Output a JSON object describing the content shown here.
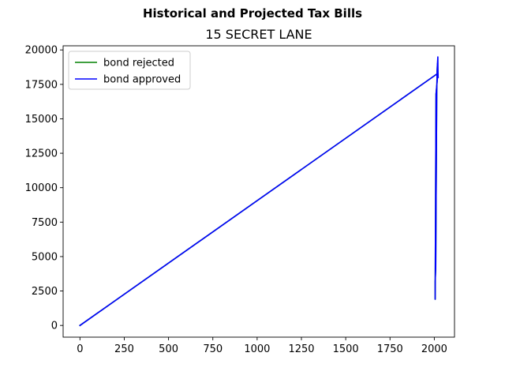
{
  "chart_data": {
    "type": "line",
    "suptitle": "Historical and Projected Tax Bills",
    "title": "15 SECRET LANE",
    "xlabel": "",
    "ylabel": "",
    "xlim": [
      -95,
      2114
    ],
    "ylim": [
      -850,
      20300
    ],
    "xticks": [
      0,
      250,
      500,
      750,
      1000,
      1250,
      1500,
      1750,
      2000
    ],
    "yticks": [
      0,
      2500,
      5000,
      7500,
      10000,
      12500,
      15000,
      17500,
      20000
    ],
    "grid": false,
    "legend": "top-left",
    "series": [
      {
        "name": "bond rejected",
        "color": "#008000",
        "x": [
          0,
          2020,
          2010,
          2005,
          2005,
          2008,
          2010,
          2012,
          2014,
          2016,
          2018,
          2020,
          2021
        ],
        "y": [
          0,
          18300,
          16800,
          1900,
          3200,
          4200,
          8500,
          13000,
          17000,
          18500,
          19000,
          18400,
          18200
        ]
      },
      {
        "name": "bond approved",
        "color": "#0000ff",
        "x": [
          0,
          2020,
          2010,
          2005,
          2005,
          2008,
          2010,
          2012,
          2014,
          2016,
          2018,
          2020,
          2021,
          2022
        ],
        "y": [
          0,
          18300,
          16800,
          1900,
          3200,
          4200,
          8500,
          13000,
          17000,
          18500,
          19000,
          19500,
          18300,
          18000
        ]
      }
    ]
  }
}
